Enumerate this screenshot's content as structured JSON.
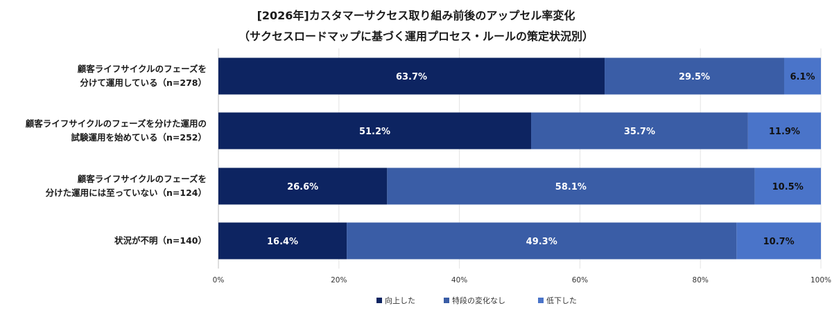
{
  "title_line1": "[2026年]カスタマーサクセス取り組み前後のアップセル率変化",
  "title_line2": "（サクセスロードマップに基づく運用プロセス・ルールの策定状況別）",
  "chart_data": {
    "type": "bar",
    "orientation": "horizontal",
    "stacked": true,
    "categories": [
      [
        "顧客ライフサイクルのフェーズを",
        "分けて運用している（n=278）"
      ],
      [
        "顧客ライフサイクルのフェーズを分けた運用の",
        "試験運用を始めている（n=252）"
      ],
      [
        "顧客ライフサイクルのフェーズを",
        "分けた運用には至っていない（n=124）"
      ],
      [
        "状況が不明（n=140）"
      ]
    ],
    "series": [
      {
        "name": "向上した",
        "color": "#0d2461",
        "label_color": "#ffffff",
        "values": [
          63.7,
          51.2,
          26.6,
          16.4
        ],
        "labels": [
          "63.7%",
          "51.2%",
          "26.6%",
          "16.4%"
        ],
        "bar_extents": [
          64.1,
          51.9,
          28.0,
          21.3
        ]
      },
      {
        "name": "特段の変化なし",
        "color": "#3a5da6",
        "label_color": "#ffffff",
        "values": [
          29.5,
          35.7,
          58.1,
          49.3
        ],
        "labels": [
          "29.5%",
          "35.7%",
          "58.1%",
          "49.3%"
        ],
        "bar_extents": [
          29.8,
          36.0,
          61.0,
          64.7
        ]
      },
      {
        "name": "低下した",
        "color": "#4a74c9",
        "label_color": "#111111",
        "values": [
          6.1,
          11.9,
          10.5,
          10.7
        ],
        "labels": [
          "6.1%",
          "11.9%",
          "10.5%",
          "10.7%"
        ],
        "bar_extents": [
          6.1,
          12.1,
          11.0,
          14.0
        ]
      }
    ],
    "xticks": [
      "0%",
      "20%",
      "40%",
      "60%",
      "80%",
      "100%"
    ],
    "xlim": [
      0,
      100
    ],
    "grid": true,
    "legend_position": "bottom"
  }
}
